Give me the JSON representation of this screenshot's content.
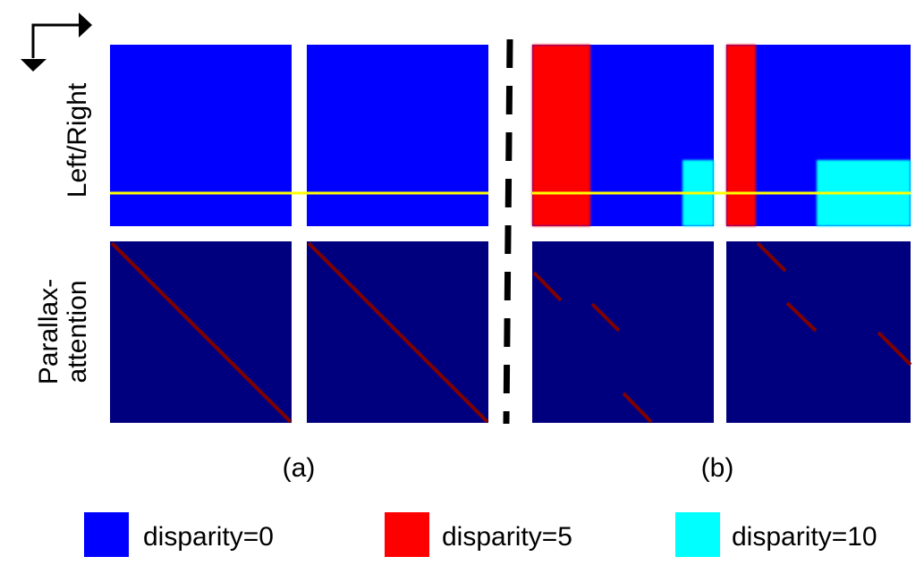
{
  "row_labels": {
    "top": "Left/Right",
    "bottom_line1": "Parallax-",
    "bottom_line2": "attention"
  },
  "captions": {
    "a": "(a)",
    "b": "(b)"
  },
  "legend": [
    {
      "label": "disparity=0",
      "color": "#0000ff"
    },
    {
      "label": "disparity=5",
      "color": "#ff0000"
    },
    {
      "label": "disparity=10",
      "color": "#00ffff"
    }
  ],
  "colors": {
    "disparity_0": "#0000ff",
    "disparity_5": "#ff0000",
    "disparity_10": "#00ffff",
    "attention_background": "#00007f",
    "attention_diagonal": "#7f0000",
    "scanline": "#ffff00",
    "divider": "#000000"
  },
  "icons": {
    "axes": "corner-arrows-icon"
  }
}
